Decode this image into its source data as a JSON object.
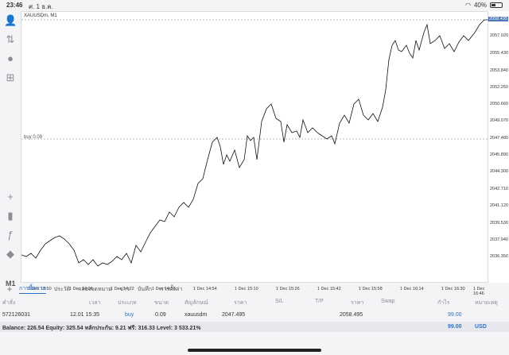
{
  "status": {
    "time": "23:46",
    "date": "ศ. 1 ธ.ค.",
    "battery": "40%"
  },
  "chart": {
    "symbol": "XAUUSDm, M1",
    "buy_label": "buy 0.09",
    "price_labels": [
      "2058.495",
      "2057.020",
      "2055.430",
      "2053.840",
      "2052.250",
      "2050.660",
      "2049.070",
      "2047.480",
      "2045.890",
      "2044.300",
      "2042.710",
      "2041.120",
      "2039.530",
      "2037.940",
      "2036.350"
    ],
    "time_labels": [
      "1 Dec 13:50",
      "1 Dec 14:06",
      "1 Dec 14:22",
      "1 Dec 14:38",
      "1 Dec 14:54",
      "1 Dec 15:10",
      "1 Dec 15:26",
      "1 Dec 15:42",
      "1 Dec 15:58",
      "1 Dec 16:14",
      "1 Dec 16:30",
      "1 Dec 16:46"
    ]
  },
  "sidebar": {
    "timeframe": "M1"
  },
  "tabs": [
    "การซื้อขาย",
    "ประวัติ",
    "กล่องจดหมาย",
    "ข่าว",
    "บันทึก",
    "การตั้งค่า"
  ],
  "headers": [
    "คำสั่ง",
    "เวลา",
    "ประเภท",
    "ขนาด",
    "สัญลักษณ์",
    "ราคา",
    "S/L",
    "T/P",
    "ราคา",
    "Swap",
    "กำไร",
    "หมายเหตุ"
  ],
  "position": {
    "id": "572126031",
    "time": "12.01 15:35",
    "type": "buy",
    "size": "0.09",
    "symbol": "xauusdm",
    "open": "2047.495",
    "price": "2058.495",
    "profit": "99.00"
  },
  "balance": {
    "text": "Balance: 226.54 Equity: 325.54 หลักประกัน: 9.21 ฟรี: 316.33 Level: 3 533.21%",
    "profit": "99.00",
    "currency": "USD"
  },
  "colors": {
    "accent": "#2a72d0"
  }
}
